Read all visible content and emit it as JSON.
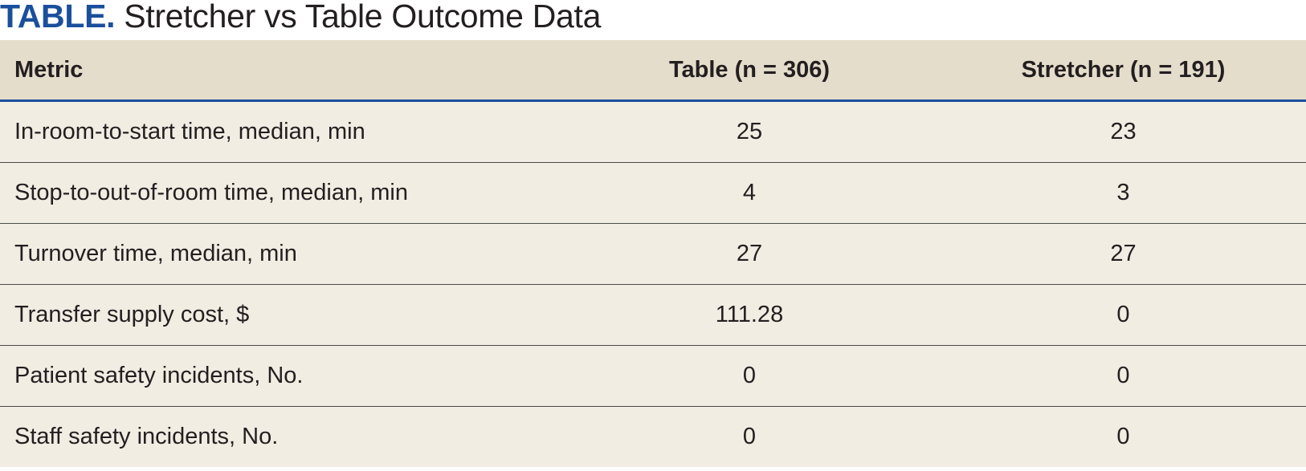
{
  "title": {
    "lead": "TABLE.",
    "rest": "Stretcher vs Table Outcome Data"
  },
  "table": {
    "headers": [
      "Metric",
      "Table (n = 306)",
      "Stretcher (n = 191)"
    ],
    "rows": [
      [
        "In-room-to-start time, median, min",
        "25",
        "23"
      ],
      [
        "Stop-to-out-of-room time, median, min",
        "4",
        "3"
      ],
      [
        "Turnover time, median, min",
        "27",
        "27"
      ],
      [
        "Transfer supply cost, $",
        "111.28",
        "0"
      ],
      [
        "Patient safety incidents, No.",
        "0",
        "0"
      ],
      [
        "Staff safety incidents, No.",
        "0",
        "0"
      ]
    ]
  },
  "colors": {
    "accent": "#1a4f9c",
    "header_bg": "#e5ddcb",
    "row_bg": "#f1ede3"
  }
}
